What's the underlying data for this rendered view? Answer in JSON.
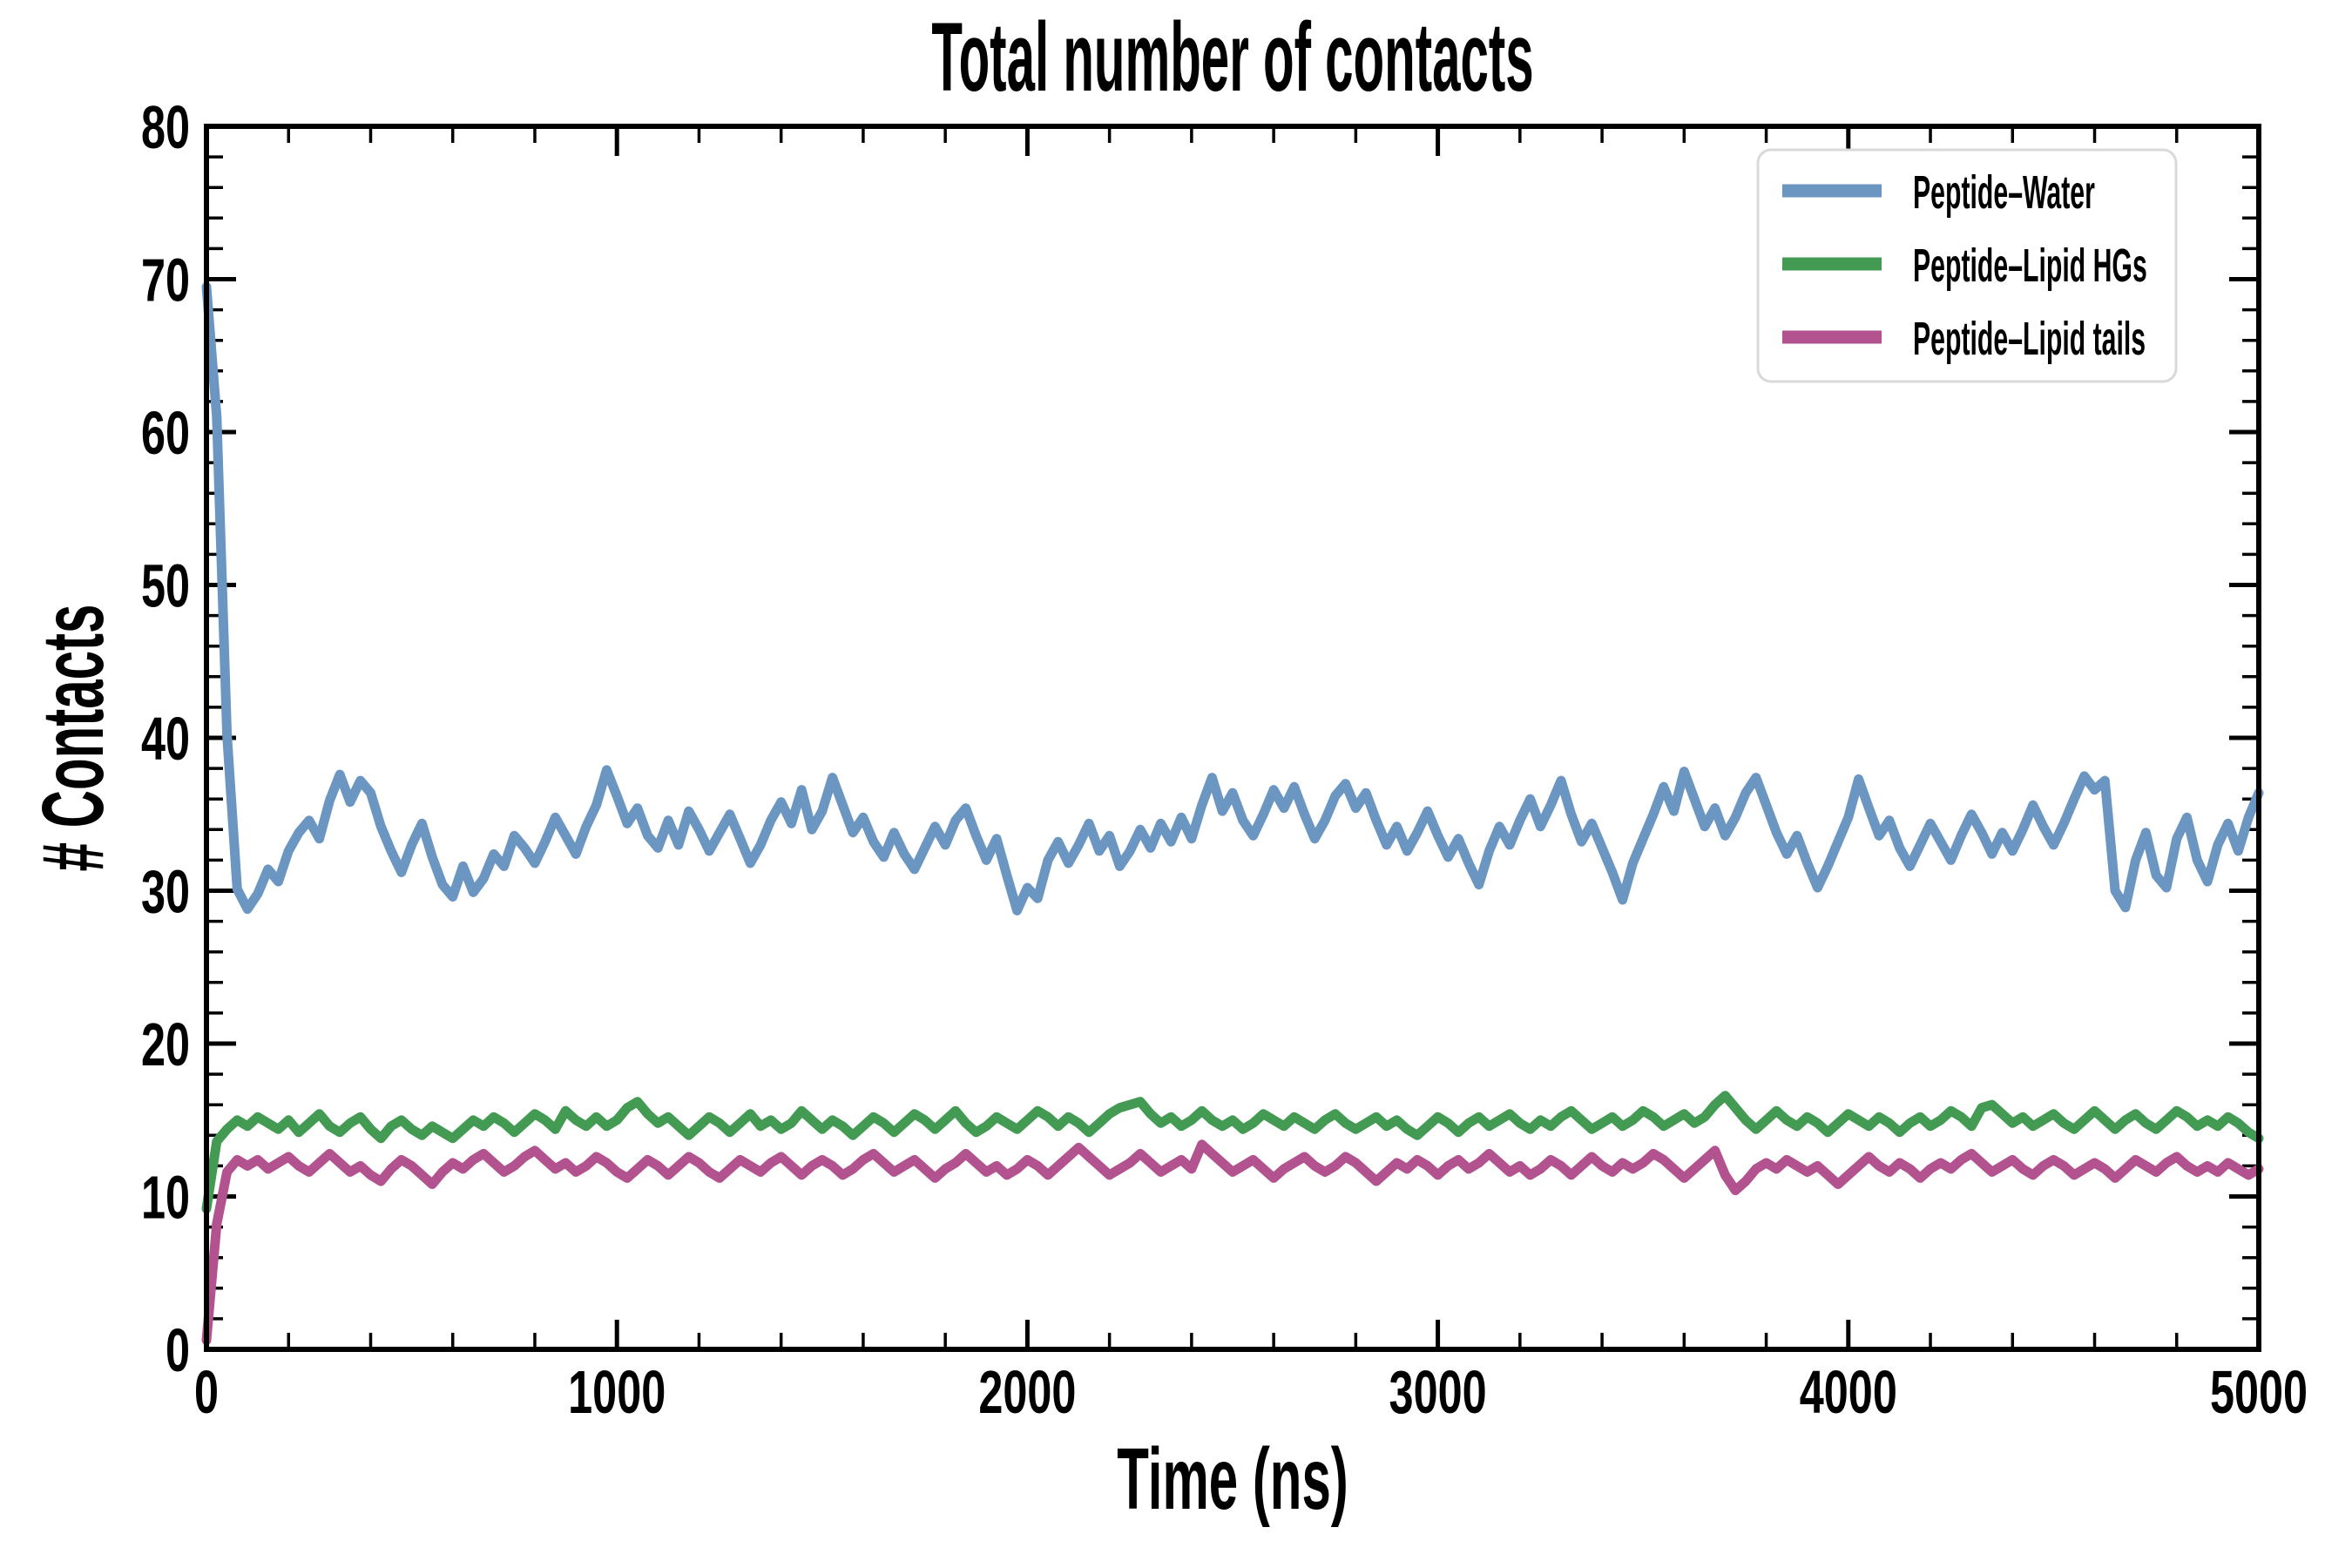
{
  "chart_data": {
    "type": "line",
    "title": "Total number of contacts",
    "xlabel": "Time (ns)",
    "ylabel": "# Contacts",
    "xlim": [
      0,
      5000
    ],
    "ylim": [
      0,
      80
    ],
    "x_major_ticks": [
      0,
      1000,
      2000,
      3000,
      4000,
      5000
    ],
    "x_minor_step": 200,
    "y_major_ticks": [
      0,
      10,
      20,
      30,
      40,
      50,
      60,
      70,
      80
    ],
    "y_minor_step": 2,
    "grid": false,
    "tick_direction": "in",
    "legend_position": "upper right",
    "axis_color": "#000000",
    "background": "#ffffff",
    "legend_border_color": "#d9d9d9",
    "x_start": 0,
    "x_step": 25,
    "series": [
      {
        "name": "Peptide–Water",
        "color": "#6b96c1",
        "values": [
          69.5,
          61.0,
          40.2,
          30.1,
          28.8,
          29.8,
          31.4,
          30.6,
          32.6,
          33.8,
          34.6,
          33.4,
          35.9,
          37.6,
          35.8,
          37.2,
          36.4,
          34.2,
          32.6,
          31.2,
          33.0,
          34.4,
          32.2,
          30.4,
          29.6,
          31.6,
          29.9,
          30.8,
          32.4,
          31.6,
          33.6,
          32.8,
          31.8,
          33.2,
          34.8,
          33.6,
          32.4,
          34.2,
          35.6,
          37.9,
          36.2,
          34.4,
          35.4,
          33.6,
          32.8,
          34.6,
          33.0,
          35.2,
          34.0,
          32.6,
          33.8,
          35.0,
          33.4,
          31.8,
          33.0,
          34.6,
          35.8,
          34.4,
          36.6,
          34.0,
          35.2,
          37.4,
          35.6,
          33.8,
          34.8,
          33.2,
          32.2,
          33.8,
          32.4,
          31.4,
          32.8,
          34.2,
          33.0,
          34.6,
          35.4,
          33.6,
          32.0,
          33.4,
          31.0,
          28.7,
          30.2,
          29.5,
          32.0,
          33.2,
          31.8,
          33.0,
          34.4,
          32.6,
          33.6,
          31.6,
          32.6,
          34.0,
          32.8,
          34.4,
          33.2,
          34.8,
          33.4,
          35.6,
          37.4,
          35.2,
          36.4,
          34.6,
          33.6,
          35.0,
          36.6,
          35.4,
          36.8,
          35.0,
          33.4,
          34.6,
          36.2,
          37.0,
          35.4,
          36.4,
          34.6,
          33.0,
          34.2,
          32.6,
          33.8,
          35.2,
          33.6,
          32.2,
          33.4,
          31.8,
          30.4,
          32.6,
          34.2,
          33.0,
          34.6,
          36.0,
          34.2,
          35.6,
          37.2,
          35.0,
          33.2,
          34.4,
          32.8,
          31.2,
          29.4,
          31.8,
          33.4,
          35.0,
          36.8,
          35.2,
          37.8,
          36.0,
          34.2,
          35.4,
          33.6,
          34.8,
          36.4,
          37.4,
          35.6,
          33.8,
          32.4,
          33.6,
          31.8,
          30.2,
          31.6,
          33.2,
          34.8,
          37.3,
          35.4,
          33.6,
          34.6,
          32.8,
          31.6,
          33.0,
          34.4,
          33.2,
          32.0,
          33.6,
          35.0,
          33.8,
          32.4,
          33.8,
          32.6,
          34.0,
          35.6,
          34.2,
          33.0,
          34.4,
          36.0,
          37.5,
          36.6,
          37.2,
          30.0,
          28.9,
          32.0,
          33.8,
          31.0,
          30.2,
          33.4,
          34.8,
          32.0,
          30.6,
          33.0,
          34.4,
          32.6,
          34.8,
          36.4
        ]
      },
      {
        "name": "Peptide–Lipid HGs",
        "color": "#439a53",
        "values": [
          9.2,
          13.6,
          14.4,
          15.0,
          14.6,
          15.2,
          14.8,
          14.4,
          15.0,
          14.2,
          14.8,
          15.4,
          14.6,
          14.2,
          14.8,
          15.2,
          14.4,
          13.8,
          14.6,
          15.0,
          14.4,
          14.0,
          14.6,
          14.2,
          13.8,
          14.4,
          15.0,
          14.6,
          15.2,
          14.8,
          14.2,
          14.8,
          15.4,
          15.0,
          14.4,
          15.6,
          15.0,
          14.6,
          15.2,
          14.6,
          15.0,
          15.8,
          16.2,
          15.4,
          14.8,
          15.2,
          14.6,
          14.0,
          14.6,
          15.2,
          14.8,
          14.2,
          14.8,
          15.4,
          14.6,
          15.0,
          14.4,
          14.8,
          15.6,
          15.0,
          14.4,
          15.0,
          14.6,
          14.0,
          14.6,
          15.2,
          14.8,
          14.2,
          14.8,
          15.4,
          15.0,
          14.4,
          15.0,
          15.6,
          14.8,
          14.2,
          14.6,
          15.2,
          14.8,
          14.4,
          15.0,
          15.6,
          15.2,
          14.6,
          15.2,
          14.8,
          14.2,
          14.8,
          15.4,
          15.8,
          16.0,
          16.2,
          15.4,
          14.8,
          15.2,
          14.6,
          15.0,
          15.6,
          15.0,
          14.6,
          15.0,
          14.4,
          14.8,
          15.4,
          15.0,
          14.6,
          15.2,
          14.8,
          14.4,
          15.0,
          15.4,
          14.8,
          14.4,
          14.8,
          15.2,
          14.6,
          15.0,
          14.4,
          14.0,
          14.6,
          15.2,
          14.8,
          14.2,
          14.8,
          15.2,
          14.6,
          15.0,
          15.4,
          14.8,
          14.4,
          15.0,
          14.6,
          15.2,
          15.6,
          15.0,
          14.4,
          14.8,
          15.2,
          14.6,
          15.0,
          15.6,
          15.2,
          14.6,
          15.0,
          15.4,
          14.8,
          15.2,
          16.0,
          16.6,
          15.8,
          15.0,
          14.4,
          15.0,
          15.6,
          15.0,
          14.6,
          15.2,
          14.8,
          14.2,
          14.8,
          15.4,
          15.0,
          14.6,
          15.2,
          14.8,
          14.2,
          14.8,
          15.2,
          14.6,
          15.0,
          15.6,
          15.2,
          14.6,
          15.8,
          16.0,
          15.4,
          14.8,
          15.2,
          14.6,
          15.0,
          15.4,
          14.8,
          14.4,
          15.0,
          15.6,
          15.0,
          14.4,
          15.0,
          15.4,
          14.8,
          14.4,
          15.0,
          15.6,
          15.2,
          14.6,
          15.0,
          14.6,
          15.2,
          14.8,
          14.2,
          13.8
        ]
      },
      {
        "name": "Peptide–Lipid tails",
        "color": "#b2538f",
        "values": [
          0.6,
          8.2,
          11.6,
          12.4,
          12.0,
          12.4,
          11.8,
          12.2,
          12.6,
          12.0,
          11.6,
          12.2,
          12.8,
          12.2,
          11.6,
          12.0,
          11.4,
          11.0,
          11.8,
          12.4,
          12.0,
          11.4,
          10.8,
          11.6,
          12.2,
          11.8,
          12.4,
          12.8,
          12.2,
          11.6,
          12.0,
          12.6,
          13.0,
          12.4,
          11.8,
          12.2,
          11.6,
          12.0,
          12.6,
          12.2,
          11.6,
          11.2,
          11.8,
          12.4,
          12.0,
          11.4,
          12.0,
          12.6,
          12.2,
          11.6,
          11.2,
          11.8,
          12.4,
          12.0,
          11.6,
          12.2,
          12.6,
          12.0,
          11.4,
          12.0,
          12.4,
          12.0,
          11.4,
          11.8,
          12.4,
          12.8,
          12.2,
          11.6,
          12.0,
          12.4,
          11.8,
          11.2,
          11.8,
          12.2,
          12.8,
          12.2,
          11.6,
          12.0,
          11.4,
          11.8,
          12.4,
          12.0,
          11.4,
          12.0,
          12.6,
          13.2,
          12.6,
          12.0,
          11.4,
          11.8,
          12.2,
          12.8,
          12.2,
          11.6,
          12.0,
          12.4,
          11.8,
          13.4,
          12.8,
          12.2,
          11.6,
          12.0,
          12.4,
          11.8,
          11.2,
          11.8,
          12.2,
          12.6,
          12.0,
          11.6,
          12.0,
          12.6,
          12.2,
          11.6,
          11.0,
          11.6,
          12.2,
          11.8,
          12.4,
          12.0,
          11.4,
          12.0,
          12.4,
          11.8,
          12.2,
          12.8,
          12.2,
          11.6,
          12.0,
          11.4,
          11.8,
          12.4,
          12.0,
          11.4,
          12.0,
          12.6,
          12.0,
          11.6,
          12.2,
          11.8,
          12.2,
          12.8,
          12.4,
          11.8,
          11.2,
          11.8,
          12.4,
          13.0,
          11.4,
          10.4,
          11.0,
          11.8,
          12.2,
          11.8,
          12.4,
          12.0,
          11.6,
          12.0,
          11.4,
          10.8,
          11.4,
          12.0,
          12.6,
          12.0,
          11.6,
          12.2,
          11.8,
          11.2,
          11.8,
          12.2,
          11.8,
          12.4,
          12.8,
          12.2,
          11.6,
          12.0,
          12.4,
          11.8,
          11.4,
          12.0,
          12.4,
          12.0,
          11.4,
          11.8,
          12.2,
          11.8,
          11.2,
          11.8,
          12.4,
          12.0,
          11.6,
          12.2,
          12.6,
          12.0,
          11.6,
          12.0,
          11.6,
          12.2,
          11.8,
          11.4,
          11.8
        ]
      }
    ]
  }
}
